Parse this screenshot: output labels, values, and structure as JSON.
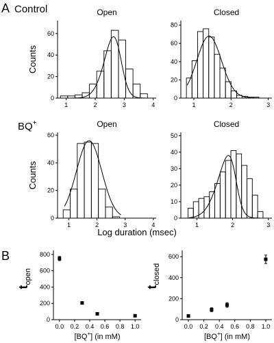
{
  "figure": {
    "panel_a": "A",
    "panel_b": "B",
    "row_control": "Control",
    "row_bq": "BQ",
    "row_bq_sup": "+",
    "shared_xlabel": "Log duration (msec)"
  },
  "chart_data": [
    {
      "id": "control_open",
      "type": "histogram",
      "title": "Open",
      "ylabel": "Counts",
      "xlim": [
        0.7,
        4.1
      ],
      "ylim": [
        0,
        72
      ],
      "xticks": [
        1,
        2,
        3,
        4
      ],
      "yticks": [
        0,
        20,
        40,
        60
      ],
      "bins": [
        {
          "x0": 0.8,
          "x1": 1.05,
          "y": 2
        },
        {
          "x0": 1.05,
          "x1": 1.3,
          "y": 2
        },
        {
          "x0": 1.3,
          "x1": 1.55,
          "y": 3
        },
        {
          "x0": 1.55,
          "x1": 1.8,
          "y": 5
        },
        {
          "x0": 1.8,
          "x1": 2.05,
          "y": 13
        },
        {
          "x0": 2.05,
          "x1": 2.3,
          "y": 25
        },
        {
          "x0": 2.3,
          "x1": 2.55,
          "y": 44
        },
        {
          "x0": 2.55,
          "x1": 2.8,
          "y": 63
        },
        {
          "x0": 2.8,
          "x1": 3.05,
          "y": 54
        },
        {
          "x0": 3.05,
          "x1": 3.3,
          "y": 27
        },
        {
          "x0": 3.3,
          "x1": 3.55,
          "y": 13
        },
        {
          "x0": 3.55,
          "x1": 3.8,
          "y": 4
        },
        {
          "x0": 3.8,
          "x1": 4.05,
          "y": 0
        }
      ],
      "fit": {
        "mean": 2.85,
        "sd": 0.42,
        "peak": 57,
        "skew": -1.6,
        "x0": 0.8,
        "x1": 3.95
      }
    },
    {
      "id": "control_closed",
      "type": "histogram",
      "title": "Closed",
      "ylabel": "",
      "xlim": [
        0.65,
        3.1
      ],
      "ylim": [
        0,
        85
      ],
      "xticks": [
        1,
        2,
        3
      ],
      "yticks": [
        0,
        20,
        40,
        60,
        80
      ],
      "bins": [
        {
          "x0": 0.8,
          "x1": 0.95,
          "y": 22
        },
        {
          "x0": 0.95,
          "x1": 1.1,
          "y": 41
        },
        {
          "x0": 1.1,
          "x1": 1.25,
          "y": 73
        },
        {
          "x0": 1.25,
          "x1": 1.4,
          "y": 76
        },
        {
          "x0": 1.4,
          "x1": 1.55,
          "y": 67
        },
        {
          "x0": 1.55,
          "x1": 1.7,
          "y": 48
        },
        {
          "x0": 1.7,
          "x1": 1.85,
          "y": 33
        },
        {
          "x0": 1.85,
          "x1": 2.0,
          "y": 18
        },
        {
          "x0": 2.0,
          "x1": 2.15,
          "y": 8
        },
        {
          "x0": 2.15,
          "x1": 2.3,
          "y": 3
        },
        {
          "x0": 2.3,
          "x1": 2.45,
          "y": 2
        },
        {
          "x0": 2.45,
          "x1": 2.6,
          "y": 1
        },
        {
          "x0": 2.6,
          "x1": 2.75,
          "y": 1
        },
        {
          "x0": 2.75,
          "x1": 2.9,
          "y": 0
        },
        {
          "x0": 2.9,
          "x1": 3.05,
          "y": 0
        }
      ],
      "fit": {
        "mean": 1.28,
        "sd": 0.36,
        "peak": 68,
        "skew": 0.5,
        "x0": 0.82,
        "x1": 3.0
      }
    },
    {
      "id": "bq_open",
      "type": "histogram",
      "title": "Open",
      "ylabel": "Counts",
      "xlim": [
        0.6,
        4.1
      ],
      "ylim": [
        0,
        62
      ],
      "xticks": [
        1,
        2,
        3,
        4
      ],
      "yticks": [
        0,
        20,
        40,
        60
      ],
      "bins": [
        {
          "x0": 0.8,
          "x1": 1.05,
          "y": 6
        },
        {
          "x0": 1.05,
          "x1": 1.3,
          "y": 21
        },
        {
          "x0": 1.3,
          "x1": 1.55,
          "y": 54
        },
        {
          "x0": 1.55,
          "x1": 1.8,
          "y": 55
        },
        {
          "x0": 1.8,
          "x1": 2.05,
          "y": 54
        },
        {
          "x0": 2.05,
          "x1": 2.3,
          "y": 21
        },
        {
          "x0": 2.3,
          "x1": 2.55,
          "y": 8
        },
        {
          "x0": 2.55,
          "x1": 2.8,
          "y": 1
        }
      ],
      "fit": {
        "mean": 1.72,
        "sd": 0.45,
        "peak": 56,
        "skew": 0,
        "x0": 0.85,
        "x1": 2.85
      }
    },
    {
      "id": "bq_closed",
      "type": "histogram",
      "title": "Closed",
      "ylabel": "",
      "xlim": [
        0.55,
        3.1
      ],
      "ylim": [
        0,
        52
      ],
      "xticks": [
        1,
        2,
        3
      ],
      "yticks": [
        0,
        10,
        20,
        30,
        40,
        50
      ],
      "bins": [
        {
          "x0": 0.75,
          "x1": 0.9,
          "y": 6
        },
        {
          "x0": 0.9,
          "x1": 1.05,
          "y": 10
        },
        {
          "x0": 1.05,
          "x1": 1.2,
          "y": 12
        },
        {
          "x0": 1.2,
          "x1": 1.35,
          "y": 13
        },
        {
          "x0": 1.35,
          "x1": 1.5,
          "y": 16
        },
        {
          "x0": 1.5,
          "x1": 1.65,
          "y": 21
        },
        {
          "x0": 1.65,
          "x1": 1.8,
          "y": 28
        },
        {
          "x0": 1.8,
          "x1": 1.95,
          "y": 35
        },
        {
          "x0": 1.95,
          "x1": 2.1,
          "y": 41
        },
        {
          "x0": 2.1,
          "x1": 2.25,
          "y": 39
        },
        {
          "x0": 2.25,
          "x1": 2.4,
          "y": 32
        },
        {
          "x0": 2.4,
          "x1": 2.55,
          "y": 24
        },
        {
          "x0": 2.55,
          "x1": 2.7,
          "y": 14
        },
        {
          "x0": 2.7,
          "x1": 2.85,
          "y": 4
        },
        {
          "x0": 2.85,
          "x1": 3.0,
          "y": 0
        }
      ],
      "fit": {
        "mean": 2.08,
        "sd": 0.4,
        "peak": 38,
        "skew": -2.2,
        "x0": 0.78,
        "x1": 2.85
      }
    },
    {
      "id": "b_open",
      "type": "scatter",
      "ylabel": "t",
      "ylabel_sub": "open",
      "xlabel": "[BQ",
      "xlabel_sup": "+",
      "xlabel_tail": "] (in mM)",
      "xlim": [
        -0.08,
        1.08
      ],
      "ylim": [
        0,
        850
      ],
      "xticks": [
        0.0,
        0.2,
        0.4,
        0.6,
        0.8,
        1.0
      ],
      "xtick_labels": [
        "0.0",
        "0.2",
        "0.4",
        "0.6",
        "0.8",
        "1.0"
      ],
      "yticks": [
        0,
        200,
        400,
        600,
        800
      ],
      "points": [
        {
          "x": 0.0,
          "y": 750,
          "err": 25
        },
        {
          "x": 0.3,
          "y": 205,
          "err": 15
        },
        {
          "x": 0.5,
          "y": 72,
          "err": 5
        },
        {
          "x": 1.0,
          "y": 48,
          "err": 5
        }
      ]
    },
    {
      "id": "b_closed",
      "type": "scatter",
      "ylabel": "t",
      "ylabel_sub": "closed",
      "xlabel": "[BQ",
      "xlabel_sup": "+",
      "xlabel_tail": "] (in mM)",
      "xlim": [
        -0.08,
        1.08
      ],
      "ylim": [
        0,
        660
      ],
      "xticks": [
        0.0,
        0.2,
        0.4,
        0.6,
        0.8,
        1.0
      ],
      "xtick_labels": [
        "0.0",
        "0.2",
        "0.4",
        "0.6",
        "0.8",
        "1.0"
      ],
      "yticks": [
        0,
        200,
        400,
        600
      ],
      "points": [
        {
          "x": 0.0,
          "y": 35,
          "err": 5
        },
        {
          "x": 0.3,
          "y": 95,
          "err": 18
        },
        {
          "x": 0.5,
          "y": 140,
          "err": 22
        },
        {
          "x": 1.0,
          "y": 575,
          "err": 40
        }
      ]
    }
  ]
}
